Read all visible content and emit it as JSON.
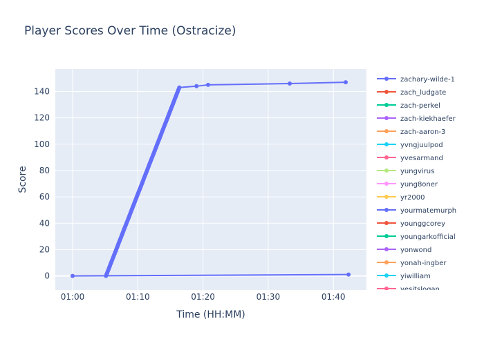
{
  "chart_data": {
    "type": "line",
    "title": "Player Scores Over Time (Ostracize)",
    "xlabel": "Time (HH:MM)",
    "ylabel": "Score",
    "xlim": [
      "00:57:21",
      "01:45:04"
    ],
    "ylim": [
      -10.7,
      157
    ],
    "x_ticks": [
      "01:00",
      "01:10",
      "01:20",
      "01:30",
      "01:40"
    ],
    "y_ticks": [
      0,
      20,
      40,
      60,
      80,
      100,
      120,
      140
    ],
    "grid": true,
    "legend_position": "right",
    "series": [
      {
        "name": "zachary-wilde-1",
        "color": "#636efa",
        "points": [
          [
            "01:05:07",
            0
          ],
          [
            "01:05:31",
            5
          ],
          [
            "01:05:54",
            10
          ],
          [
            "01:06:18",
            15
          ],
          [
            "01:06:42",
            20
          ],
          [
            "01:07:05",
            25
          ],
          [
            "01:07:29",
            30
          ],
          [
            "01:07:52",
            35
          ],
          [
            "01:08:16",
            40
          ],
          [
            "01:08:40",
            45
          ],
          [
            "01:09:03",
            50
          ],
          [
            "01:09:27",
            55
          ],
          [
            "01:09:50",
            60
          ],
          [
            "01:10:14",
            65
          ],
          [
            "01:10:38",
            70
          ],
          [
            "01:11:01",
            75
          ],
          [
            "01:11:25",
            80
          ],
          [
            "01:11:48",
            85
          ],
          [
            "01:12:12",
            90
          ],
          [
            "01:12:36",
            95
          ],
          [
            "01:12:59",
            100
          ],
          [
            "01:13:23",
            105
          ],
          [
            "01:13:46",
            110
          ],
          [
            "01:14:10",
            115
          ],
          [
            "01:14:34",
            120
          ],
          [
            "01:14:57",
            125
          ],
          [
            "01:15:21",
            130
          ],
          [
            "01:15:44",
            135
          ],
          [
            "01:16:08",
            140
          ],
          [
            "01:16:22",
            143
          ],
          [
            "01:19:00",
            144
          ],
          [
            "01:20:47",
            145
          ],
          [
            "01:33:18",
            146
          ],
          [
            "01:41:53",
            147
          ]
        ]
      },
      {
        "name": "zach_ludgate",
        "color": "#EF553B",
        "points": []
      },
      {
        "name": "zach-perkel",
        "color": "#00cc96",
        "points": []
      },
      {
        "name": "zach-kiekhaefer",
        "color": "#ab63fa",
        "points": []
      },
      {
        "name": "zach-aaron-3",
        "color": "#FFA15A",
        "points": []
      },
      {
        "name": "yvngjuulpod",
        "color": "#19d3f3",
        "points": []
      },
      {
        "name": "yvesarmand",
        "color": "#FF6692",
        "points": []
      },
      {
        "name": "yungvirus",
        "color": "#B6E880",
        "points": []
      },
      {
        "name": "yung8oner",
        "color": "#FF97FF",
        "points": []
      },
      {
        "name": "yr2000",
        "color": "#FECB52",
        "points": [
          [
            "01:00:00",
            0
          ]
        ]
      },
      {
        "name": "yourmatemurph",
        "color": "#636efa",
        "points": [
          [
            "01:00:00",
            0
          ],
          [
            "01:42:19",
            1
          ]
        ]
      },
      {
        "name": "younggcorey",
        "color": "#EF553B",
        "points": []
      },
      {
        "name": "youngarkofficial",
        "color": "#00cc96",
        "points": []
      },
      {
        "name": "yonwond",
        "color": "#ab63fa",
        "points": []
      },
      {
        "name": "yonah-ingber",
        "color": "#FFA15A",
        "points": []
      },
      {
        "name": "yiwilliam",
        "color": "#19d3f3",
        "points": []
      },
      {
        "name": "yesitslogan",
        "color": "#FF6692",
        "points": []
      }
    ]
  }
}
